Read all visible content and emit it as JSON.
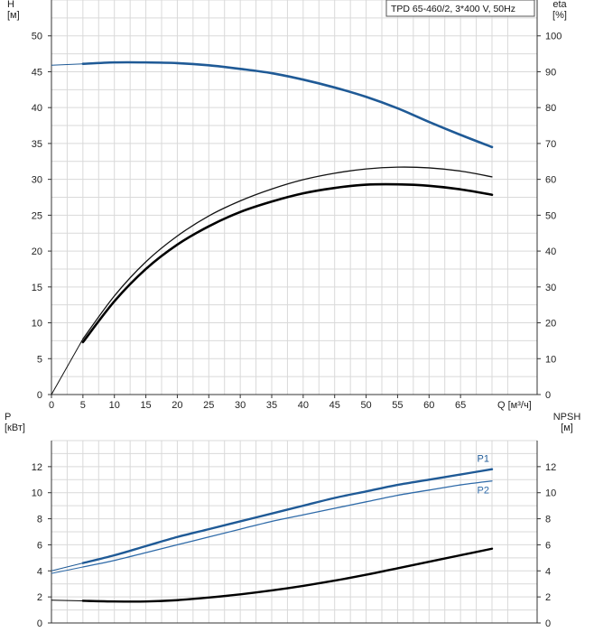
{
  "chart_data": [
    {
      "type": "line",
      "title": "TPD 65-460/2, 3*400 V, 50Hz",
      "xlabel": "Q [м³/ч]",
      "ylabel_left": "H\n[м]",
      "ylabel_right": "eta\n[%]",
      "xlim": [
        0,
        70
      ],
      "ylim_left": [
        0,
        55
      ],
      "ylim_right": [
        0,
        110
      ],
      "x_ticks": [
        0,
        5,
        10,
        15,
        20,
        25,
        30,
        35,
        40,
        45,
        50,
        55,
        60,
        65
      ],
      "y_ticks_left": [
        0,
        5,
        10,
        15,
        20,
        25,
        30,
        35,
        40,
        45,
        50
      ],
      "y_ticks_right": [
        0,
        10,
        20,
        30,
        40,
        50,
        60,
        70,
        80,
        90,
        100
      ],
      "grid": true,
      "series": [
        {
          "axis": "left",
          "color": "#1f5a96",
          "width": 2.6,
          "ext_to": 0,
          "x": [
            5,
            10,
            15,
            20,
            25,
            30,
            35,
            40,
            45,
            50,
            55,
            60,
            65,
            70
          ],
          "values": [
            46.1,
            46.3,
            46.3,
            46.2,
            45.9,
            45.4,
            44.8,
            43.9,
            42.8,
            41.5,
            39.9,
            38.0,
            36.2,
            34.5
          ]
        },
        {
          "axis": "right",
          "color": "#111111",
          "width": 1.3,
          "ext_to": 0,
          "x": [
            5,
            10,
            15,
            20,
            25,
            30,
            35,
            40,
            45,
            50,
            55,
            60,
            65,
            70
          ],
          "values": [
            15.5,
            27.5,
            37.0,
            44.2,
            49.8,
            54.0,
            57.3,
            59.9,
            61.7,
            62.9,
            63.4,
            63.2,
            62.3,
            60.7
          ]
        },
        {
          "axis": "right",
          "color": "#000000",
          "width": 2.6,
          "ext_to": null,
          "x": [
            5,
            10,
            15,
            20,
            25,
            30,
            35,
            40,
            45,
            50,
            55,
            60,
            65,
            70
          ],
          "values": [
            14.6,
            26.0,
            35.0,
            41.8,
            46.9,
            50.9,
            53.8,
            56.1,
            57.6,
            58.5,
            58.6,
            58.2,
            57.2,
            55.7
          ]
        }
      ]
    },
    {
      "type": "line",
      "xlabel": "",
      "ylabel_left": "P\n[кВт]",
      "ylabel_right": "NPSH\n[м]",
      "xlim": [
        0,
        70
      ],
      "ylim_left": [
        0,
        14
      ],
      "ylim_right": [
        0,
        14
      ],
      "y_ticks_left": [
        0,
        2,
        4,
        6,
        8,
        10,
        12
      ],
      "y_ticks_right": [
        0,
        2,
        4,
        6,
        8,
        10,
        12
      ],
      "grid": true,
      "series": [
        {
          "name": "P1",
          "axis": "left",
          "color": "#1f5a96",
          "width": 2.4,
          "ext_to": 0,
          "x": [
            5,
            10,
            15,
            20,
            25,
            30,
            35,
            40,
            45,
            50,
            55,
            60,
            65,
            70
          ],
          "values": [
            4.6,
            5.2,
            5.9,
            6.6,
            7.2,
            7.8,
            8.4,
            9.0,
            9.6,
            10.1,
            10.6,
            11.0,
            11.4,
            11.8
          ]
        },
        {
          "name": "P2",
          "axis": "left",
          "color": "#2e6aa8",
          "width": 1.3,
          "ext_to": 0,
          "x": [
            5,
            10,
            15,
            20,
            25,
            30,
            35,
            40,
            45,
            50,
            55,
            60,
            65,
            70
          ],
          "values": [
            4.3,
            4.8,
            5.4,
            6.0,
            6.6,
            7.2,
            7.8,
            8.3,
            8.8,
            9.3,
            9.8,
            10.2,
            10.6,
            10.9
          ]
        },
        {
          "axis": "right",
          "color": "#000000",
          "width": 2.4,
          "ext_to": 0,
          "x": [
            5,
            10,
            15,
            20,
            25,
            30,
            35,
            40,
            45,
            50,
            55,
            60,
            65,
            70
          ],
          "values": [
            1.7,
            1.65,
            1.65,
            1.75,
            1.95,
            2.2,
            2.5,
            2.85,
            3.25,
            3.7,
            4.2,
            4.7,
            5.2,
            5.7
          ]
        }
      ]
    }
  ]
}
